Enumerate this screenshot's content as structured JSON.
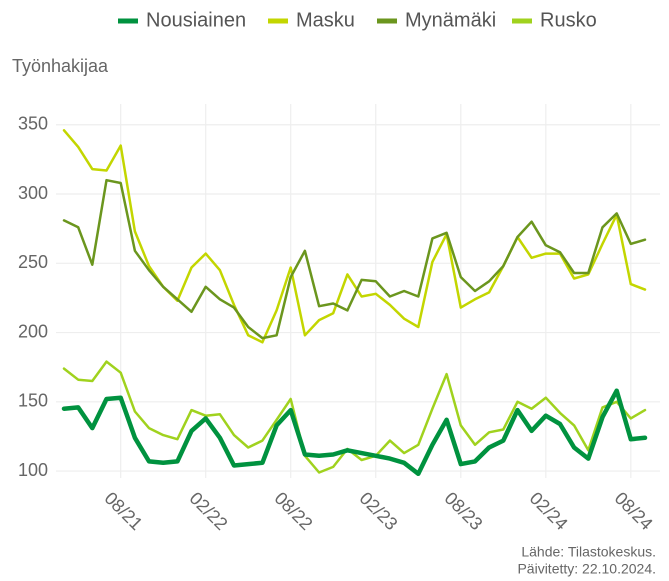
{
  "chart_data": {
    "type": "line",
    "y_label": "Työnhakijaa",
    "categories": [
      "04/21",
      "05/21",
      "06/21",
      "07/21",
      "08/21",
      "09/21",
      "10/21",
      "11/21",
      "12/21",
      "01/22",
      "02/22",
      "03/22",
      "04/22",
      "05/22",
      "06/22",
      "07/22",
      "08/22",
      "09/22",
      "10/22",
      "11/22",
      "12/22",
      "01/23",
      "02/23",
      "03/23",
      "04/23",
      "05/23",
      "06/23",
      "07/23",
      "08/23",
      "09/23",
      "10/23",
      "11/23",
      "12/23",
      "01/24",
      "02/24",
      "03/24",
      "04/24",
      "05/24",
      "06/24",
      "07/24",
      "08/24",
      "09/24"
    ],
    "xticks": [
      "08/21",
      "02/22",
      "08/22",
      "02/23",
      "08/23",
      "02/24",
      "08/24"
    ],
    "series": [
      {
        "name": "Nousiainen",
        "color": "#00923f",
        "width": 4.5,
        "values": [
          145,
          146,
          131,
          152,
          153,
          124,
          107,
          106,
          107,
          129,
          138,
          124,
          104,
          105,
          106,
          133,
          144,
          112,
          111,
          112,
          115,
          113,
          111,
          109,
          106,
          98,
          119,
          137,
          105,
          107,
          117,
          122,
          144,
          129,
          140,
          134,
          117,
          109,
          139,
          158,
          123,
          124
        ]
      },
      {
        "name": "Masku",
        "color": "#c3d600",
        "width": 2.5,
        "values": [
          346,
          334,
          318,
          317,
          335,
          273,
          248,
          233,
          223,
          247,
          257,
          245,
          220,
          198,
          193,
          216,
          247,
          198,
          209,
          214,
          242,
          226,
          228,
          220,
          210,
          204,
          251,
          271,
          218,
          224,
          229,
          248,
          269,
          254,
          257,
          257,
          239,
          242,
          264,
          285,
          235,
          231
        ]
      },
      {
        "name": "Mynämäki",
        "color": "#6b961e",
        "width": 2.5,
        "values": [
          281,
          276,
          249,
          310,
          308,
          259,
          245,
          233,
          224,
          215,
          233,
          224,
          218,
          204,
          196,
          198,
          240,
          259,
          219,
          221,
          216,
          238,
          237,
          226,
          230,
          226,
          268,
          272,
          240,
          230,
          237,
          248,
          269,
          280,
          263,
          258,
          243,
          243,
          276,
          286,
          264,
          267
        ]
      },
      {
        "name": "Rusko",
        "color": "#a0d21e",
        "width": 2.5,
        "values": [
          174,
          166,
          165,
          179,
          171,
          143,
          131,
          126,
          123,
          144,
          140,
          141,
          126,
          117,
          122,
          137,
          152,
          111,
          99,
          103,
          116,
          108,
          111,
          122,
          113,
          119,
          145,
          170,
          133,
          119,
          128,
          130,
          150,
          145,
          153,
          142,
          133,
          115,
          146,
          150,
          138,
          144
        ]
      }
    ],
    "ylim": [
      95,
      365
    ],
    "yticks": [
      100,
      150,
      200,
      250,
      300,
      350
    ],
    "grid": true,
    "legend": "top",
    "caption": [
      "Lähde: Tilastokeskus.",
      "Päivitetty: 22.10.2024."
    ]
  }
}
